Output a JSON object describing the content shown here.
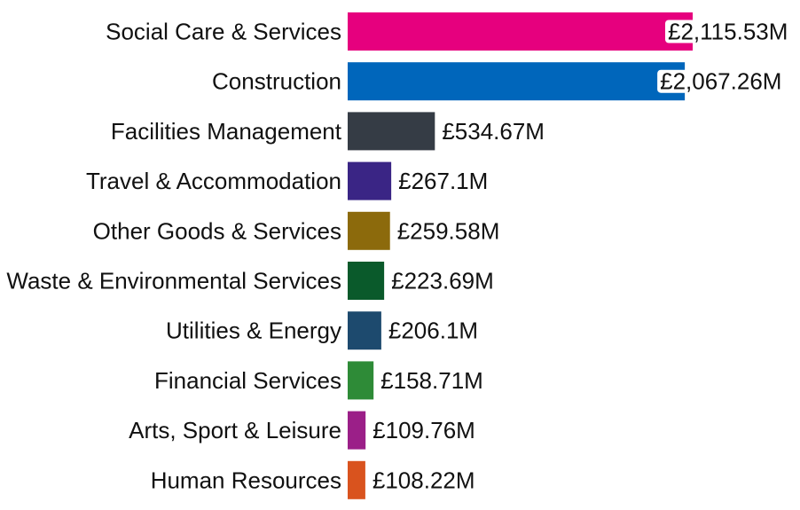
{
  "chart_data": {
    "type": "bar",
    "orientation": "horizontal",
    "categories": [
      "Social Care & Services",
      "Construction",
      "Facilities Management",
      "Travel & Accommodation",
      "Other Goods & Services",
      "Waste & Environmental Services",
      "Utilities & Energy",
      "Financial Services",
      "Arts, Sport & Leisure",
      "Human Resources"
    ],
    "values": [
      2115.53,
      2067.26,
      534.67,
      267.1,
      259.58,
      223.69,
      206.1,
      158.71,
      109.76,
      108.22
    ],
    "value_labels": [
      "£2,115.53M",
      "£2,067.26M",
      "£534.67M",
      "£267.1M",
      "£259.58M",
      "£223.69M",
      "£206.1M",
      "£158.71M",
      "£109.76M",
      "£108.22M"
    ],
    "colors": [
      "#E6007E",
      "#0066BB",
      "#353C45",
      "#3A2585",
      "#8C6A0C",
      "#0A5A2B",
      "#1D4A6E",
      "#2E8B37",
      "#9B1F88",
      "#D9531E"
    ],
    "title": "",
    "xlabel": "",
    "ylabel": "",
    "xlim": [
      0,
      2115.53
    ],
    "grid": false,
    "legend": "none"
  }
}
